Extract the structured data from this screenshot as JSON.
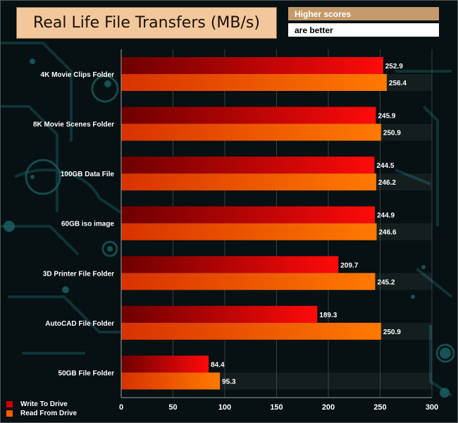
{
  "title": "Real Life File Transfers (MB/s)",
  "note": {
    "line1": "Higher scores",
    "line2": "are better"
  },
  "colors": {
    "write": "#e01010",
    "read": "#ff5a00",
    "accent": "#f2c79b"
  },
  "legend": {
    "write_label": "Write To  Drive",
    "read_label": "Read From  Drive"
  },
  "chart_data": {
    "type": "bar",
    "orientation": "horizontal",
    "title": "Real Life File Transfers (MB/s)",
    "categories": [
      "4K Movie Clips Folder",
      "8K Movie Scenes Folder",
      "100GB Data File",
      "60GB iso image",
      "3D Printer File Folder",
      "AutoCAD File Folder",
      "50GB File Folder"
    ],
    "series": [
      {
        "name": "Write To  Drive",
        "values": [
          252.9,
          245.9,
          244.5,
          244.9,
          209.7,
          189.3,
          84.4
        ]
      },
      {
        "name": "Read From  Drive",
        "values": [
          256.4,
          250.9,
          246.2,
          246.6,
          245.2,
          250.9,
          95.3
        ]
      }
    ],
    "xlim": [
      0,
      300
    ],
    "xticks": [
      "0",
      "50",
      "100",
      "150",
      "200",
      "250",
      "300"
    ],
    "legend_position": "bottom-left"
  }
}
